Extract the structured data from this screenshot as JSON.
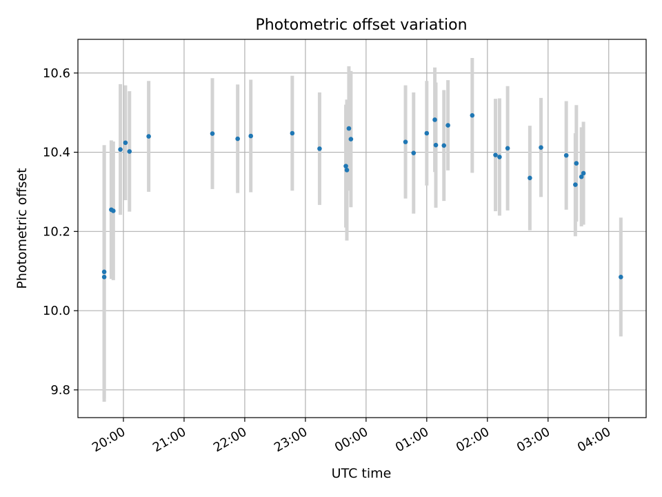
{
  "chart_data": {
    "type": "scatter",
    "title": "Photometric offset variation",
    "xlabel": "UTC time",
    "ylabel": "Photometric offset",
    "x_unit": "UTC time (hours after 00:00 of first night)",
    "xlim": [
      "19:15",
      "04:37"
    ],
    "ylim": [
      9.73,
      10.685
    ],
    "grid": true,
    "x_ticks": [
      "20:00",
      "21:00",
      "22:00",
      "23:00",
      "00:00",
      "01:00",
      "02:00",
      "03:00",
      "04:00"
    ],
    "y_ticks": [
      "9.8",
      "10.0",
      "10.2",
      "10.4",
      "10.6"
    ],
    "colors": {
      "point": "#1f77b4",
      "errorbar": "#d3d3d3",
      "grid": "#b0b0b0"
    },
    "series": [
      {
        "points": [
          {
            "x": "19:41",
            "y": 10.085,
            "yerr": 0.315
          },
          {
            "x": "19:41",
            "y": 10.098,
            "yerr": 0.32
          },
          {
            "x": "19:48",
            "y": 10.255,
            "yerr": 0.175
          },
          {
            "x": "19:50",
            "y": 10.252,
            "yerr": 0.175
          },
          {
            "x": "19:57",
            "y": 10.407,
            "yerr": 0.165
          },
          {
            "x": "20:02",
            "y": 10.424,
            "yerr": 0.145
          },
          {
            "x": "20:06",
            "y": 10.402,
            "yerr": 0.152
          },
          {
            "x": "20:25",
            "y": 10.44,
            "yerr": 0.14
          },
          {
            "x": "21:28",
            "y": 10.447,
            "yerr": 0.14
          },
          {
            "x": "21:53",
            "y": 10.434,
            "yerr": 0.137
          },
          {
            "x": "22:06",
            "y": 10.441,
            "yerr": 0.142
          },
          {
            "x": "22:47",
            "y": 10.448,
            "yerr": 0.145
          },
          {
            "x": "23:14",
            "y": 10.409,
            "yerr": 0.142
          },
          {
            "x": "23:40",
            "y": 10.365,
            "yerr": 0.155
          },
          {
            "x": "23:41",
            "y": 10.355,
            "yerr": 0.178
          },
          {
            "x": "23:43",
            "y": 10.46,
            "yerr": 0.157
          },
          {
            "x": "23:45",
            "y": 10.433,
            "yerr": 0.172
          },
          {
            "x": "00:39",
            "y": 10.426,
            "yerr": 0.143
          },
          {
            "x": "00:47",
            "y": 10.398,
            "yerr": 0.153
          },
          {
            "x": "01:00",
            "y": 10.448,
            "yerr": 0.132
          },
          {
            "x": "01:08",
            "y": 10.482,
            "yerr": 0.132
          },
          {
            "x": "01:09",
            "y": 10.418,
            "yerr": 0.158
          },
          {
            "x": "01:17",
            "y": 10.417,
            "yerr": 0.14
          },
          {
            "x": "01:21",
            "y": 10.468,
            "yerr": 0.114
          },
          {
            "x": "01:45",
            "y": 10.493,
            "yerr": 0.145
          },
          {
            "x": "02:08",
            "y": 10.393,
            "yerr": 0.142
          },
          {
            "x": "02:12",
            "y": 10.388,
            "yerr": 0.148
          },
          {
            "x": "02:20",
            "y": 10.41,
            "yerr": 0.157
          },
          {
            "x": "02:42",
            "y": 10.335,
            "yerr": 0.132
          },
          {
            "x": "02:53",
            "y": 10.412,
            "yerr": 0.125
          },
          {
            "x": "03:18",
            "y": 10.392,
            "yerr": 0.137
          },
          {
            "x": "03:27",
            "y": 10.318,
            "yerr": 0.13
          },
          {
            "x": "03:28",
            "y": 10.372,
            "yerr": 0.147
          },
          {
            "x": "03:33",
            "y": 10.338,
            "yerr": 0.125
          },
          {
            "x": "03:35",
            "y": 10.347,
            "yerr": 0.13
          },
          {
            "x": "04:12",
            "y": 10.085,
            "yerr": 0.15
          }
        ]
      }
    ]
  }
}
